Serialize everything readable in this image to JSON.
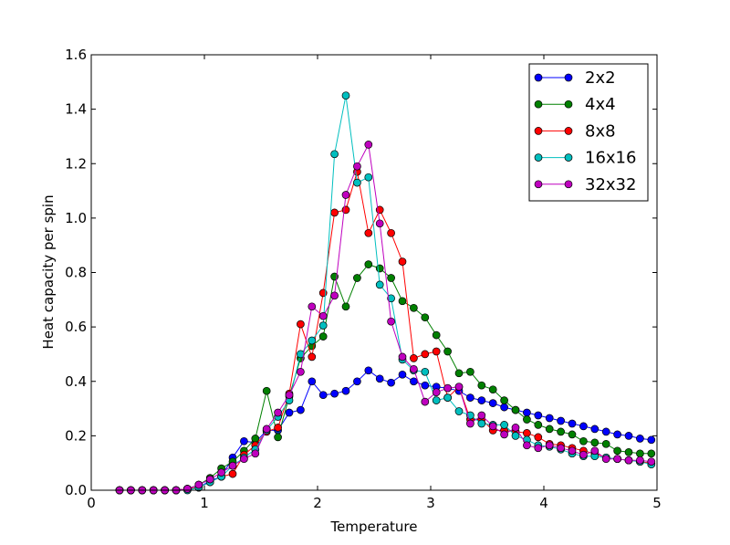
{
  "chart_data": {
    "type": "line",
    "title": "",
    "xlabel": "Temperature",
    "ylabel": "Heat capacity per spin",
    "xlim": [
      0,
      5
    ],
    "ylim": [
      0,
      1.6
    ],
    "xticks": [
      0,
      1,
      2,
      3,
      4,
      5
    ],
    "xtick_labels": [
      "0",
      "1",
      "2",
      "3",
      "4",
      "5"
    ],
    "yticks": [
      0,
      0.2,
      0.4,
      0.6,
      0.8,
      1.0,
      1.2,
      1.4,
      1.6
    ],
    "ytick_labels": [
      "0.0",
      "0.2",
      "0.4",
      "0.6",
      "0.8",
      "1.0",
      "1.2",
      "1.4",
      "1.6"
    ],
    "legend_position": "top-right",
    "grid": false,
    "x": [
      0.25,
      0.35,
      0.45,
      0.55,
      0.65,
      0.75,
      0.85,
      0.95,
      1.05,
      1.15,
      1.25,
      1.35,
      1.45,
      1.55,
      1.65,
      1.75,
      1.85,
      1.95,
      2.05,
      2.15,
      2.25,
      2.35,
      2.45,
      2.55,
      2.65,
      2.75,
      2.85,
      2.95,
      3.05,
      3.15,
      3.25,
      3.35,
      3.45,
      3.55,
      3.65,
      3.75,
      3.85,
      3.95,
      4.05,
      4.15,
      4.25,
      4.35,
      4.45,
      4.55,
      4.65,
      4.75,
      4.85,
      4.95
    ],
    "series": [
      {
        "name": "2x2",
        "color": "#0000ff",
        "values": [
          0.0,
          0.0,
          0.0,
          0.0,
          0.0,
          0.0,
          0.005,
          0.01,
          0.035,
          0.05,
          0.12,
          0.18,
          0.175,
          0.22,
          0.22,
          0.285,
          0.295,
          0.4,
          0.35,
          0.355,
          0.365,
          0.4,
          0.44,
          0.41,
          0.395,
          0.425,
          0.4,
          0.385,
          0.38,
          0.375,
          0.365,
          0.34,
          0.33,
          0.32,
          0.305,
          0.295,
          0.285,
          0.275,
          0.265,
          0.255,
          0.245,
          0.235,
          0.225,
          0.215,
          0.205,
          0.2,
          0.19,
          0.185
        ]
      },
      {
        "name": "4x4",
        "color": "#008000",
        "values": [
          0.0,
          0.0,
          0.0,
          0.0,
          0.0,
          0.0,
          0.005,
          0.02,
          0.045,
          0.08,
          0.105,
          0.145,
          0.19,
          0.365,
          0.195,
          0.345,
          0.485,
          0.53,
          0.565,
          0.785,
          0.675,
          0.78,
          0.83,
          0.815,
          0.78,
          0.695,
          0.67,
          0.635,
          0.57,
          0.51,
          0.43,
          0.435,
          0.385,
          0.37,
          0.33,
          0.295,
          0.26,
          0.24,
          0.225,
          0.215,
          0.205,
          0.18,
          0.175,
          0.17,
          0.145,
          0.14,
          0.135,
          0.135
        ]
      },
      {
        "name": "8x8",
        "color": "#ff0000",
        "values": [
          0.0,
          0.0,
          0.0,
          0.0,
          0.0,
          0.0,
          0.005,
          0.01,
          0.03,
          0.05,
          0.06,
          0.13,
          0.165,
          0.215,
          0.23,
          0.355,
          0.61,
          0.49,
          0.725,
          1.02,
          1.03,
          1.17,
          0.945,
          1.03,
          0.945,
          0.84,
          0.485,
          0.5,
          0.51,
          0.34,
          0.38,
          0.26,
          0.26,
          0.22,
          0.22,
          0.215,
          0.21,
          0.195,
          0.17,
          0.165,
          0.155,
          0.145,
          0.135,
          0.12,
          0.115,
          0.11,
          0.105,
          0.1
        ]
      },
      {
        "name": "16x16",
        "color": "#00bfbf",
        "values": [
          0.0,
          0.0,
          0.0,
          0.0,
          0.0,
          0.0,
          0.0,
          0.01,
          0.03,
          0.05,
          0.09,
          0.12,
          0.15,
          0.22,
          0.27,
          0.33,
          0.5,
          0.55,
          0.605,
          1.235,
          1.45,
          1.13,
          1.15,
          0.755,
          0.705,
          0.48,
          0.44,
          0.435,
          0.33,
          0.34,
          0.29,
          0.275,
          0.245,
          0.24,
          0.24,
          0.2,
          0.185,
          0.165,
          0.16,
          0.15,
          0.135,
          0.125,
          0.125,
          0.12,
          0.115,
          0.11,
          0.105,
          0.095
        ]
      },
      {
        "name": "32x32",
        "color": "#bf00bf",
        "values": [
          0.0,
          0.0,
          0.0,
          0.0,
          0.0,
          0.0,
          0.005,
          0.02,
          0.04,
          0.065,
          0.09,
          0.115,
          0.135,
          0.225,
          0.285,
          0.35,
          0.435,
          0.675,
          0.64,
          0.715,
          1.085,
          1.19,
          1.27,
          0.98,
          0.62,
          0.49,
          0.445,
          0.325,
          0.36,
          0.375,
          0.38,
          0.245,
          0.275,
          0.235,
          0.205,
          0.23,
          0.165,
          0.155,
          0.165,
          0.155,
          0.145,
          0.13,
          0.145,
          0.115,
          0.115,
          0.11,
          0.11,
          0.105
        ]
      }
    ]
  }
}
